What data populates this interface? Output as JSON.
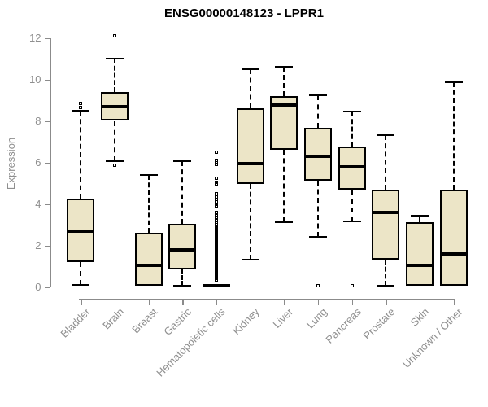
{
  "title": "ENSG00000148123 - LPPR1",
  "colors": {
    "box_fill": "#ece5c7",
    "box_border": "#000000",
    "median": "#000000",
    "whisker": "#000000",
    "axis": "#8b8b8b",
    "tick_label": "#8f8f8f",
    "title_color": "#000000"
  },
  "chart_data": {
    "type": "boxplot",
    "title": "ENSG00000148123 - LPPR1",
    "xlabel": "",
    "ylabel": "Expression",
    "ylim": [
      0,
      12
    ],
    "yticks": [
      0,
      2,
      4,
      6,
      8,
      10,
      12
    ],
    "grid": false,
    "legend": "none",
    "categories": [
      "Bladder",
      "Brain",
      "Breast",
      "Gastric",
      "Hematopoietic cells",
      "Kidney",
      "Liver",
      "Lung",
      "Pancreas",
      "Prostate",
      "Skin",
      "Unknown / Other"
    ],
    "series": [
      {
        "category": "Bladder",
        "whisker_low": 0.1,
        "q1": 1.2,
        "median": 2.7,
        "q3": 4.25,
        "whisker_high": 8.5,
        "outliers": [
          8.65,
          8.85
        ]
      },
      {
        "category": "Brain",
        "whisker_low": 6.05,
        "q1": 8.0,
        "median": 8.7,
        "q3": 9.4,
        "whisker_high": 11.0,
        "outliers": [
          5.85,
          12.1
        ]
      },
      {
        "category": "Breast",
        "whisker_low": 0.05,
        "q1": 0.05,
        "median": 1.05,
        "q3": 2.6,
        "whisker_high": 5.4,
        "outliers": []
      },
      {
        "category": "Gastric",
        "whisker_low": 0.05,
        "q1": 0.85,
        "median": 1.8,
        "q3": 3.05,
        "whisker_high": 6.05,
        "outliers": []
      },
      {
        "category": "Hematopoietic cells",
        "whisker_low": 0.0,
        "q1": 0.0,
        "median": 0.06,
        "q3": 0.12,
        "whisker_high": 0.12,
        "outliers": [
          0.35,
          0.4,
          0.45,
          0.5,
          0.55,
          0.6,
          0.65,
          0.7,
          0.75,
          0.8,
          0.85,
          0.9,
          0.95,
          1.0,
          1.05,
          1.1,
          1.15,
          1.2,
          1.25,
          1.3,
          1.35,
          1.4,
          1.45,
          1.5,
          1.55,
          1.6,
          1.65,
          1.7,
          1.75,
          1.8,
          1.85,
          1.9,
          1.95,
          2.0,
          2.05,
          2.1,
          2.15,
          2.2,
          2.25,
          2.3,
          2.35,
          2.4,
          2.45,
          2.5,
          2.55,
          2.6,
          2.65,
          2.7,
          2.75,
          2.8,
          2.85,
          2.9,
          3.0,
          3.1,
          3.2,
          3.35,
          3.45,
          3.6,
          3.9,
          4.0,
          4.1,
          4.2,
          4.35,
          4.5,
          4.95,
          5.05,
          5.25,
          5.9,
          6.0,
          6.1,
          6.5
        ]
      },
      {
        "category": "Kidney",
        "whisker_low": 1.3,
        "q1": 4.95,
        "median": 5.95,
        "q3": 8.6,
        "whisker_high": 10.5,
        "outliers": []
      },
      {
        "category": "Liver",
        "whisker_low": 3.1,
        "q1": 6.6,
        "median": 8.75,
        "q3": 9.2,
        "whisker_high": 10.6,
        "outliers": []
      },
      {
        "category": "Lung",
        "whisker_low": 2.4,
        "q1": 5.1,
        "median": 6.3,
        "q3": 7.65,
        "whisker_high": 9.25,
        "outliers": [
          0.05
        ]
      },
      {
        "category": "Pancreas",
        "whisker_low": 3.15,
        "q1": 4.7,
        "median": 5.8,
        "q3": 6.75,
        "whisker_high": 8.45,
        "outliers": [
          0.05
        ]
      },
      {
        "category": "Prostate",
        "whisker_low": 0.05,
        "q1": 1.3,
        "median": 3.6,
        "q3": 4.7,
        "whisker_high": 7.3,
        "outliers": []
      },
      {
        "category": "Skin",
        "whisker_low": 0.05,
        "q1": 0.05,
        "median": 1.05,
        "q3": 3.1,
        "whisker_high": 3.45,
        "outliers": []
      },
      {
        "category": "Unknown / Other",
        "whisker_low": 0.05,
        "q1": 0.05,
        "median": 1.6,
        "q3": 4.7,
        "whisker_high": 9.85,
        "outliers": []
      }
    ]
  }
}
